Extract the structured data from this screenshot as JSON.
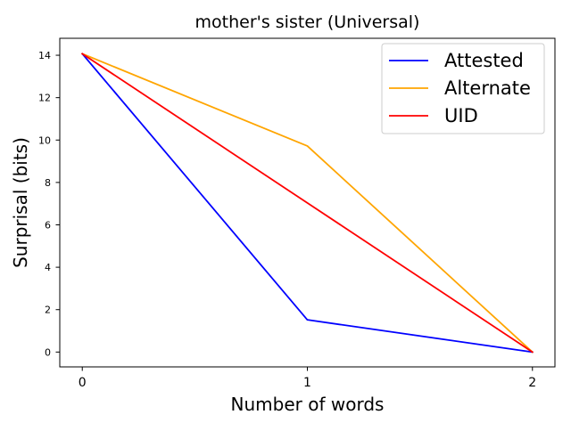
{
  "chart_data": {
    "type": "line",
    "title": "mother's sister (Universal)",
    "xlabel": "Number of words",
    "ylabel": "Surprisal (bits)",
    "x": [
      0,
      1,
      2
    ],
    "xlim": [
      -0.1,
      2.1
    ],
    "ylim": [
      -0.7,
      14.8
    ],
    "xticks": [
      0,
      1,
      2
    ],
    "yticks": [
      0,
      2,
      4,
      6,
      8,
      10,
      12,
      14
    ],
    "grid": false,
    "legend_position": "top-right",
    "series": [
      {
        "name": "Attested",
        "color": "#0000ff",
        "values": [
          14.07,
          1.52,
          0.0
        ]
      },
      {
        "name": "Alternate",
        "color": "#ffa500",
        "values": [
          14.07,
          9.72,
          0.0
        ]
      },
      {
        "name": "UID",
        "color": "#ff0000",
        "values": [
          14.07,
          7.035,
          0.0
        ]
      }
    ]
  }
}
